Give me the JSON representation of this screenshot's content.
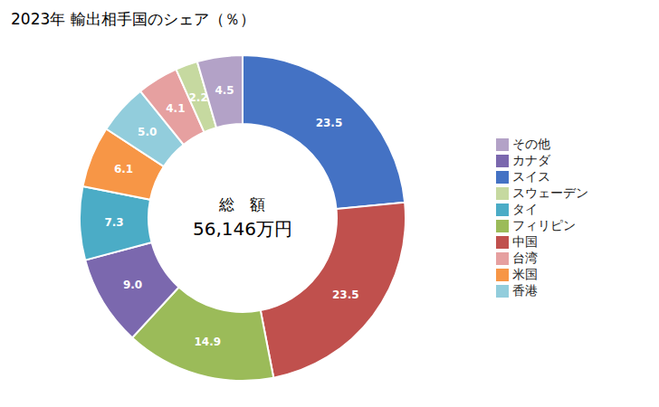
{
  "chart_data": {
    "type": "pie",
    "title": "2023年 輸出相手国のシェア（％）",
    "annotations": [
      "総　額",
      "56,146万円"
    ],
    "categories": [
      "スイス",
      "中国",
      "フィリピン",
      "カナダ",
      "タイ",
      "米国",
      "香港",
      "台湾",
      "スウェーデン",
      "その他"
    ],
    "values": [
      23.5,
      23.5,
      14.9,
      9.0,
      7.3,
      6.1,
      5.0,
      4.1,
      2.2,
      4.5
    ],
    "value_labels": [
      "23.5",
      "23.5",
      "14.9",
      "9.0",
      "7.3",
      "6.1",
      "5.0",
      "4.1",
      "2.2",
      "4.5"
    ],
    "colors": [
      "#4472C4",
      "#C0504D",
      "#9BBB59",
      "#7B68AE",
      "#4BACC6",
      "#F79646",
      "#92CDDC",
      "#E6A0A0",
      "#C6D9A0",
      "#B3A2C7"
    ],
    "data_labels": true,
    "legend": "right"
  }
}
